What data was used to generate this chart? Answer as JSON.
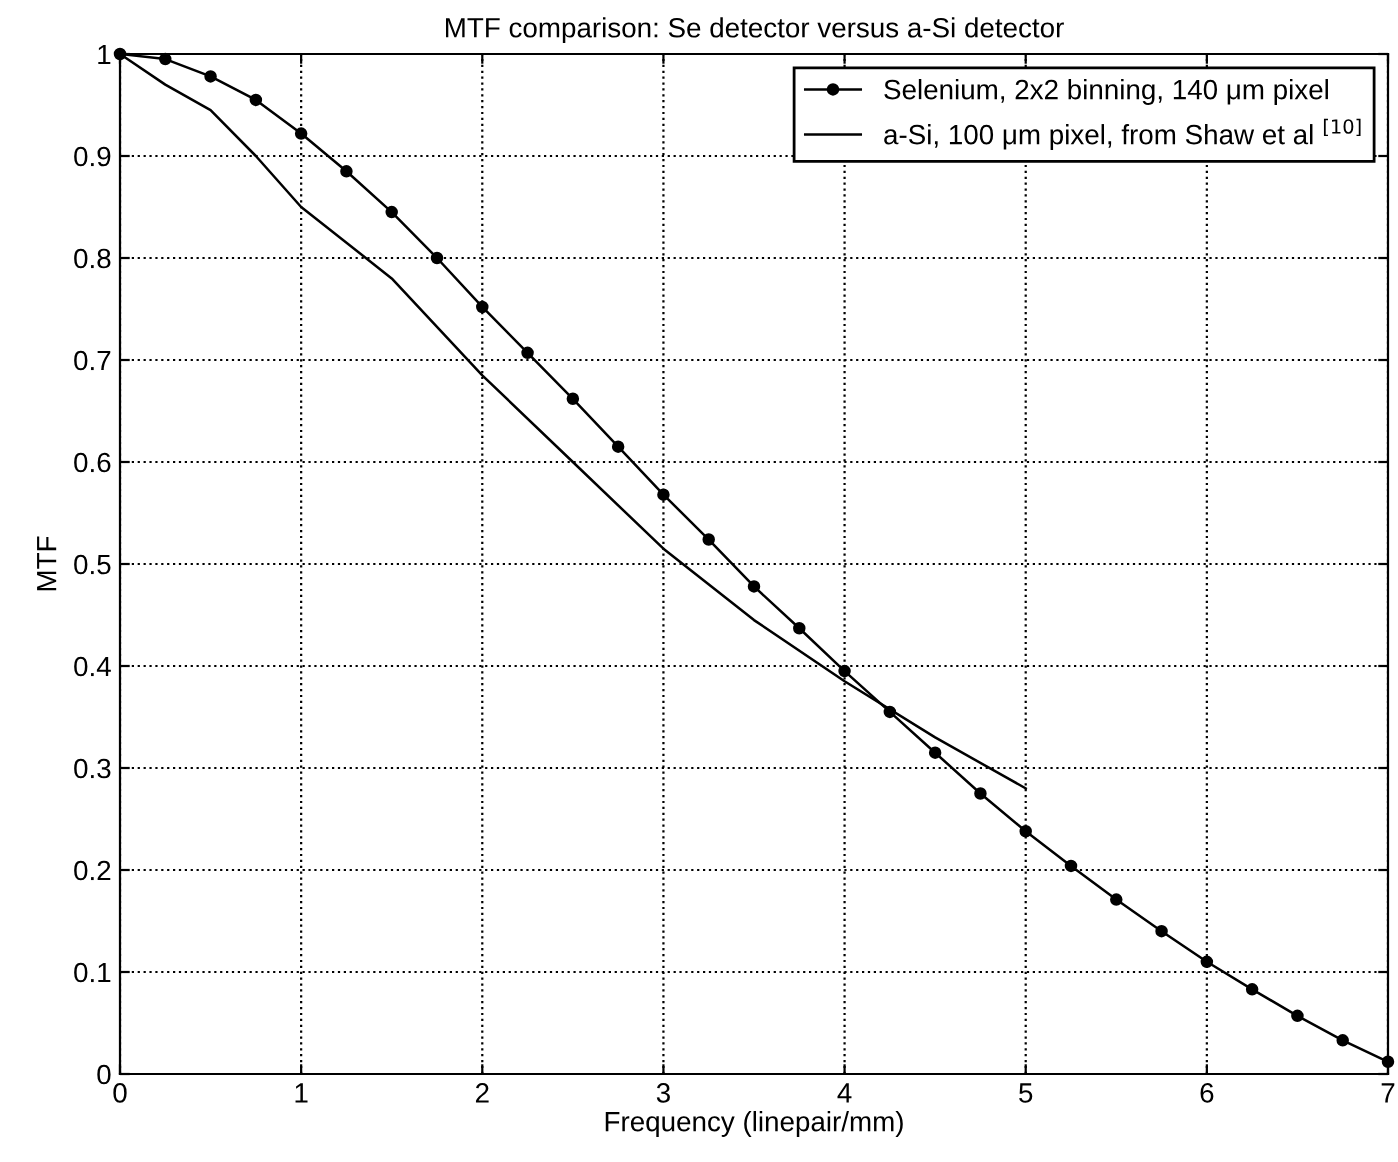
{
  "chart_data": {
    "type": "line",
    "title": "MTF comparison: Se detector versus a-Si detector",
    "xlabel": "Frequency (linepair/mm)",
    "ylabel": "MTF",
    "series": [
      {
        "name": "Selenium, 2x2 binning, 140 μm pixel",
        "color": "#000000",
        "marker": "circle",
        "x": [
          0,
          0.25,
          0.5,
          0.75,
          1,
          1.25,
          1.5,
          1.75,
          2,
          2.25,
          2.5,
          2.75,
          3,
          3.25,
          3.5,
          3.75,
          4,
          4.25,
          4.5,
          4.75,
          5,
          5.25,
          5.5,
          5.75,
          6,
          6.25,
          6.5,
          6.75,
          7
        ],
        "values": [
          1.0,
          0.995,
          0.978,
          0.955,
          0.922,
          0.885,
          0.845,
          0.8,
          0.752,
          0.707,
          0.662,
          0.615,
          0.568,
          0.524,
          0.478,
          0.437,
          0.395,
          0.355,
          0.315,
          0.275,
          0.238,
          0.204,
          0.171,
          0.14,
          0.11,
          0.083,
          0.057,
          0.033,
          0.012
        ]
      },
      {
        "name": "a-Si, 100 μm pixel, from Shaw et al $^{[10]}$",
        "color": "#000000",
        "marker": "none",
        "x": [
          0,
          0.25,
          0.5,
          0.75,
          1,
          1.5,
          2,
          2.5,
          3,
          3.5,
          4,
          4.5,
          5
        ],
        "values": [
          1.0,
          0.97,
          0.945,
          0.9,
          0.85,
          0.78,
          0.685,
          0.6,
          0.515,
          0.445,
          0.385,
          0.33,
          0.28
        ]
      }
    ],
    "xlim": [
      0,
      7
    ],
    "ylim": [
      0,
      1
    ],
    "xticks": [
      0,
      1,
      2,
      3,
      4,
      5,
      6,
      7
    ],
    "yticks": [
      0,
      0.1,
      0.2,
      0.3,
      0.4,
      0.5,
      0.6,
      0.7,
      0.8,
      0.9,
      1
    ],
    "grid": true,
    "legend": "top right",
    "line_style": "solid"
  }
}
